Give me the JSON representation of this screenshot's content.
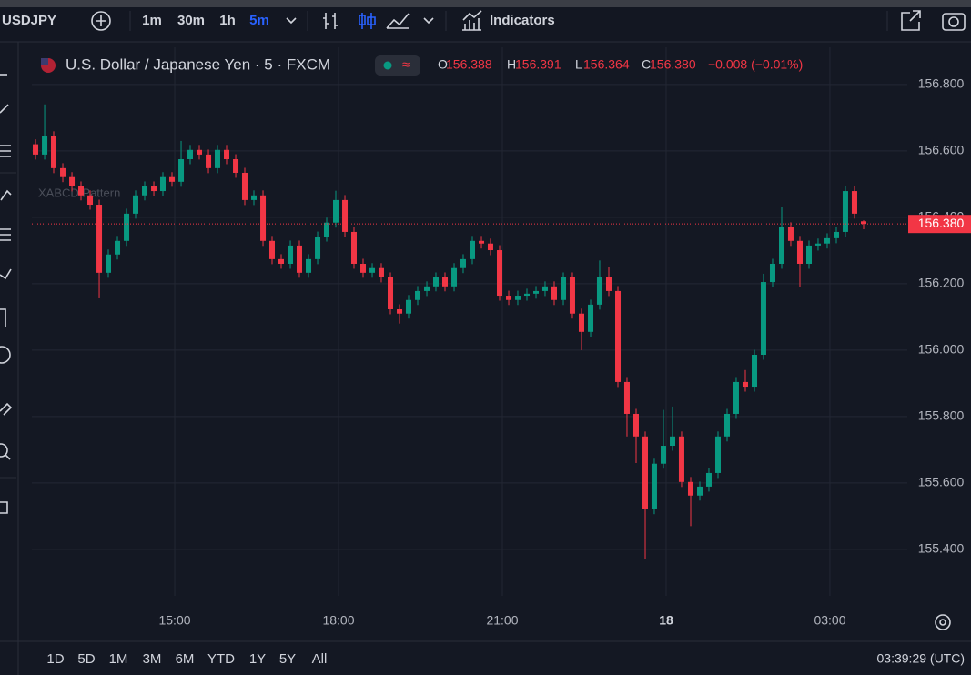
{
  "toolbar": {
    "symbol": "USDJPY",
    "intervals": [
      {
        "label": "1m"
      },
      {
        "label": "30m"
      },
      {
        "label": "1h"
      },
      {
        "label": "5m",
        "active": true
      }
    ],
    "indicators": "Indicators"
  },
  "chart_data": {
    "type": "candlestick",
    "title": "U.S. Dollar / Japanese Yen · 5 · FXCM",
    "ohlc": [
      {
        "key": "O",
        "text": "156.388"
      },
      {
        "key": "H",
        "text": "156.391"
      },
      {
        "key": "L",
        "text": "156.364"
      },
      {
        "key": "C",
        "text": "156.380"
      }
    ],
    "change": "−0.008 (−0.01%)",
    "tooltip": "XABCD Pattern",
    "up_color": "#089981",
    "down_color": "#f23645",
    "x": [
      12.45,
      12.617,
      12.783,
      12.95,
      13.117,
      13.283,
      13.45,
      13.617,
      13.783,
      13.95,
      14.117,
      14.283,
      14.45,
      14.617,
      14.783,
      14.95,
      15.117,
      15.283,
      15.45,
      15.617,
      15.783,
      15.95,
      16.117,
      16.283,
      16.45,
      16.617,
      16.783,
      16.95,
      17.117,
      17.283,
      17.45,
      17.617,
      17.783,
      17.95,
      18.117,
      18.283,
      18.45,
      18.617,
      18.783,
      18.95,
      19.117,
      19.283,
      19.45,
      19.617,
      19.783,
      19.95,
      20.117,
      20.283,
      20.45,
      20.617,
      20.783,
      20.95,
      21.117,
      21.283,
      21.45,
      21.617,
      21.783,
      21.95,
      22.117,
      22.283,
      22.45,
      22.617,
      22.783,
      22.95,
      23.117,
      23.283,
      23.45,
      23.617,
      23.783,
      23.95,
      24.117,
      24.283,
      24.45,
      24.617,
      24.783,
      24.95,
      25.117,
      25.283,
      25.45,
      25.617,
      25.783,
      25.95,
      26.117,
      26.283,
      26.45,
      26.617,
      26.783,
      26.95,
      27.117,
      27.283,
      27.45,
      27.617
    ],
    "open": [
      156.62,
      156.589,
      156.644,
      156.548,
      156.521,
      156.493,
      156.466,
      156.438,
      156.233,
      156.288,
      156.329,
      156.411,
      156.466,
      156.493,
      156.479,
      156.521,
      156.507,
      156.575,
      156.603,
      156.589,
      156.548,
      156.603,
      156.575,
      156.534,
      156.452,
      156.466,
      156.329,
      156.274,
      156.26,
      156.315,
      156.233,
      156.274,
      156.342,
      156.384,
      156.452,
      156.356,
      156.26,
      156.233,
      156.247,
      156.219,
      156.123,
      156.11,
      156.151,
      156.178,
      156.192,
      156.219,
      156.192,
      156.247,
      156.274,
      156.329,
      156.321,
      156.301,
      156.164,
      156.151,
      156.164,
      156.17,
      156.178,
      156.192,
      156.151,
      156.219,
      156.11,
      156.055,
      156.137,
      156.219,
      156.178,
      155.904,
      155.808,
      155.74,
      155.521,
      155.658,
      155.712,
      155.74,
      155.603,
      155.562,
      155.589,
      155.63,
      155.74,
      155.808,
      155.904,
      155.89,
      155.986,
      156.205,
      156.26,
      156.37,
      156.329,
      156.26,
      156.315,
      156.321,
      156.337,
      156.356,
      156.479,
      156.388
    ],
    "high": [
      156.635,
      156.74,
      156.659,
      156.563,
      156.536,
      156.508,
      156.481,
      156.453,
      156.303,
      156.344,
      156.426,
      156.481,
      156.508,
      156.508,
      156.536,
      156.536,
      156.63,
      156.618,
      156.618,
      156.604,
      156.618,
      156.618,
      156.59,
      156.549,
      156.481,
      156.481,
      156.344,
      156.289,
      156.33,
      156.33,
      156.289,
      156.357,
      156.399,
      156.48,
      156.467,
      156.371,
      156.275,
      156.262,
      156.262,
      156.234,
      156.138,
      156.166,
      156.193,
      156.207,
      156.234,
      156.234,
      156.262,
      156.289,
      156.344,
      156.344,
      156.336,
      156.316,
      156.179,
      156.179,
      156.185,
      156.193,
      156.207,
      156.207,
      156.234,
      156.234,
      156.125,
      156.152,
      156.27,
      156.25,
      156.193,
      155.919,
      155.823,
      155.755,
      155.673,
      155.82,
      155.83,
      155.755,
      155.618,
      155.604,
      155.645,
      155.755,
      155.823,
      155.919,
      155.94,
      156.001,
      156.23,
      156.275,
      156.43,
      156.385,
      156.344,
      156.33,
      156.336,
      156.352,
      156.371,
      156.494,
      156.494,
      156.391
    ],
    "low": [
      156.574,
      156.574,
      156.533,
      156.506,
      156.478,
      156.451,
      156.423,
      156.156,
      156.218,
      156.273,
      156.314,
      156.396,
      156.451,
      156.464,
      156.464,
      156.492,
      156.492,
      156.56,
      156.574,
      156.533,
      156.533,
      156.56,
      156.519,
      156.437,
      156.437,
      156.314,
      156.259,
      156.245,
      156.245,
      156.218,
      156.218,
      156.259,
      156.327,
      156.369,
      156.341,
      156.245,
      156.218,
      156.218,
      156.204,
      156.108,
      156.08,
      156.095,
      156.136,
      156.163,
      156.177,
      156.177,
      156.177,
      156.232,
      156.259,
      156.306,
      156.286,
      156.149,
      156.136,
      156.136,
      156.149,
      156.155,
      156.163,
      156.136,
      156.136,
      156.095,
      156.0,
      156.04,
      156.122,
      156.163,
      155.889,
      155.74,
      155.66,
      155.37,
      155.506,
      155.643,
      155.697,
      155.588,
      155.47,
      155.547,
      155.574,
      155.615,
      155.725,
      155.793,
      155.875,
      155.875,
      155.971,
      156.19,
      156.245,
      156.314,
      156.19,
      156.245,
      156.3,
      156.306,
      156.322,
      156.341,
      156.396,
      156.364
    ],
    "close": [
      156.589,
      156.644,
      156.548,
      156.521,
      156.493,
      156.466,
      156.438,
      156.233,
      156.288,
      156.329,
      156.411,
      156.466,
      156.493,
      156.479,
      156.521,
      156.507,
      156.575,
      156.603,
      156.589,
      156.548,
      156.603,
      156.575,
      156.534,
      156.452,
      156.466,
      156.329,
      156.274,
      156.26,
      156.315,
      156.233,
      156.274,
      156.342,
      156.384,
      156.452,
      156.356,
      156.26,
      156.233,
      156.247,
      156.219,
      156.123,
      156.11,
      156.151,
      156.178,
      156.192,
      156.219,
      156.192,
      156.247,
      156.274,
      156.329,
      156.321,
      156.301,
      156.164,
      156.151,
      156.164,
      156.17,
      156.178,
      156.192,
      156.151,
      156.219,
      156.11,
      156.055,
      156.137,
      156.219,
      156.178,
      155.904,
      155.808,
      155.74,
      155.521,
      155.658,
      155.712,
      155.74,
      155.603,
      155.562,
      155.589,
      155.63,
      155.74,
      155.808,
      155.904,
      155.89,
      155.986,
      156.205,
      156.26,
      156.37,
      156.329,
      156.26,
      156.315,
      156.321,
      156.337,
      156.356,
      156.479,
      156.411,
      156.38
    ],
    "last_price": 156.38,
    "last_price_label": "156.380",
    "last_price_color": "#f23645",
    "xlim": [
      12.383,
      28.417
    ],
    "xticks": [
      {
        "value": 15,
        "label": "15:00"
      },
      {
        "value": 18,
        "label": "18:00"
      },
      {
        "value": 21,
        "label": "21:00"
      },
      {
        "value": 24,
        "label": "18"
      },
      {
        "value": 27,
        "label": "03:00"
      }
    ],
    "ylim": [
      155.26,
      156.912
    ],
    "yticks": [
      {
        "value": 155.4,
        "label": "155.400"
      },
      {
        "value": 155.6,
        "label": "155.600"
      },
      {
        "value": 155.8,
        "label": "155.800"
      },
      {
        "value": 156.0,
        "label": "156.000"
      },
      {
        "value": 156.2,
        "label": "156.200"
      },
      {
        "value": 156.4,
        "label": "156.400"
      },
      {
        "value": 156.6,
        "label": "156.600"
      },
      {
        "value": 156.8,
        "label": "156.800"
      }
    ],
    "grid": true
  },
  "footer": {
    "ranges": [
      "1D",
      "5D",
      "1M",
      "3M",
      "6M",
      "YTD",
      "1Y",
      "5Y",
      "All"
    ],
    "clock": "03:39:29 (UTC)"
  }
}
